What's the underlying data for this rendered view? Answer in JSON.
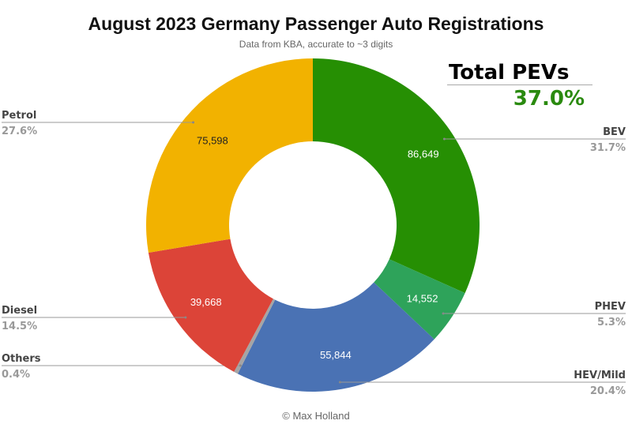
{
  "chart_data": {
    "type": "pie",
    "title": "August 2023 Germany Passenger Auto Registrations",
    "subtitle": "Data from KBA, accurate to ~3 digits",
    "donut": true,
    "start": "top",
    "direction": "clockwise",
    "slices": [
      {
        "name": "BEV",
        "value": 86649,
        "value_label": "86,649",
        "percent": "31.7%",
        "color": "#268f03",
        "text_color": "#ffffff",
        "label_side": "right"
      },
      {
        "name": "PHEV",
        "value": 14552,
        "value_label": "14,552",
        "percent": "5.3%",
        "color": "#2ea35a",
        "text_color": "#ffffff",
        "label_side": "right"
      },
      {
        "name": "HEV/Mild",
        "value": 55844,
        "value_label": "55,844",
        "percent": "20.4%",
        "color": "#4a72b4",
        "text_color": "#ffffff",
        "label_side": "right"
      },
      {
        "name": "Others",
        "value": 1100,
        "value_label": "",
        "percent": "0.4%",
        "color": "#a5a5a5",
        "text_color": "#ffffff",
        "label_side": "left"
      },
      {
        "name": "Diesel",
        "value": 39668,
        "value_label": "39,668",
        "percent": "14.5%",
        "color": "#dc4438",
        "text_color": "#ffffff",
        "label_side": "left"
      },
      {
        "name": "Petrol",
        "value": 75598,
        "value_label": "75,598",
        "percent": "27.6%",
        "color": "#f2b200",
        "text_color": "#222222",
        "label_side": "left"
      }
    ]
  },
  "annotation": {
    "title": "Total PEVs",
    "value": "37.0%",
    "value_color": "#2a8a0f"
  },
  "footer": "© Max Holland"
}
